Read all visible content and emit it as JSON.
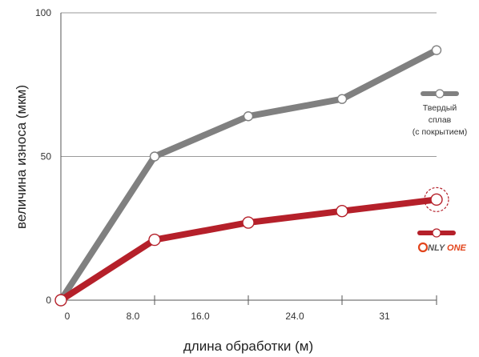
{
  "chart_data": {
    "type": "line",
    "xlabel": "длина обработки (м)",
    "ylabel": "величина износа (мкм)",
    "x_ticks": [
      "0",
      "8.0",
      "16.0",
      "24.0",
      "31"
    ],
    "y_ticks": [
      "0",
      "50",
      "100"
    ],
    "ylim": [
      0,
      100
    ],
    "grid": true,
    "legend_position": "right",
    "series": [
      {
        "name": "Твердый сплав (с покрытием)",
        "name_lines": [
          "Твердый",
          "сплав",
          "(с покрытием)"
        ],
        "color": "#808080",
        "x": [
          0,
          8,
          16,
          24,
          31
        ],
        "y": [
          0,
          50,
          64,
          70,
          87
        ]
      },
      {
        "name": "ONLY ONE",
        "logo": "only-one-logo",
        "logo_text": "ONLY ONE",
        "color": "#b5202a",
        "x": [
          0,
          8,
          16,
          24,
          31
        ],
        "y": [
          0,
          21,
          27,
          31,
          35
        ]
      }
    ]
  }
}
